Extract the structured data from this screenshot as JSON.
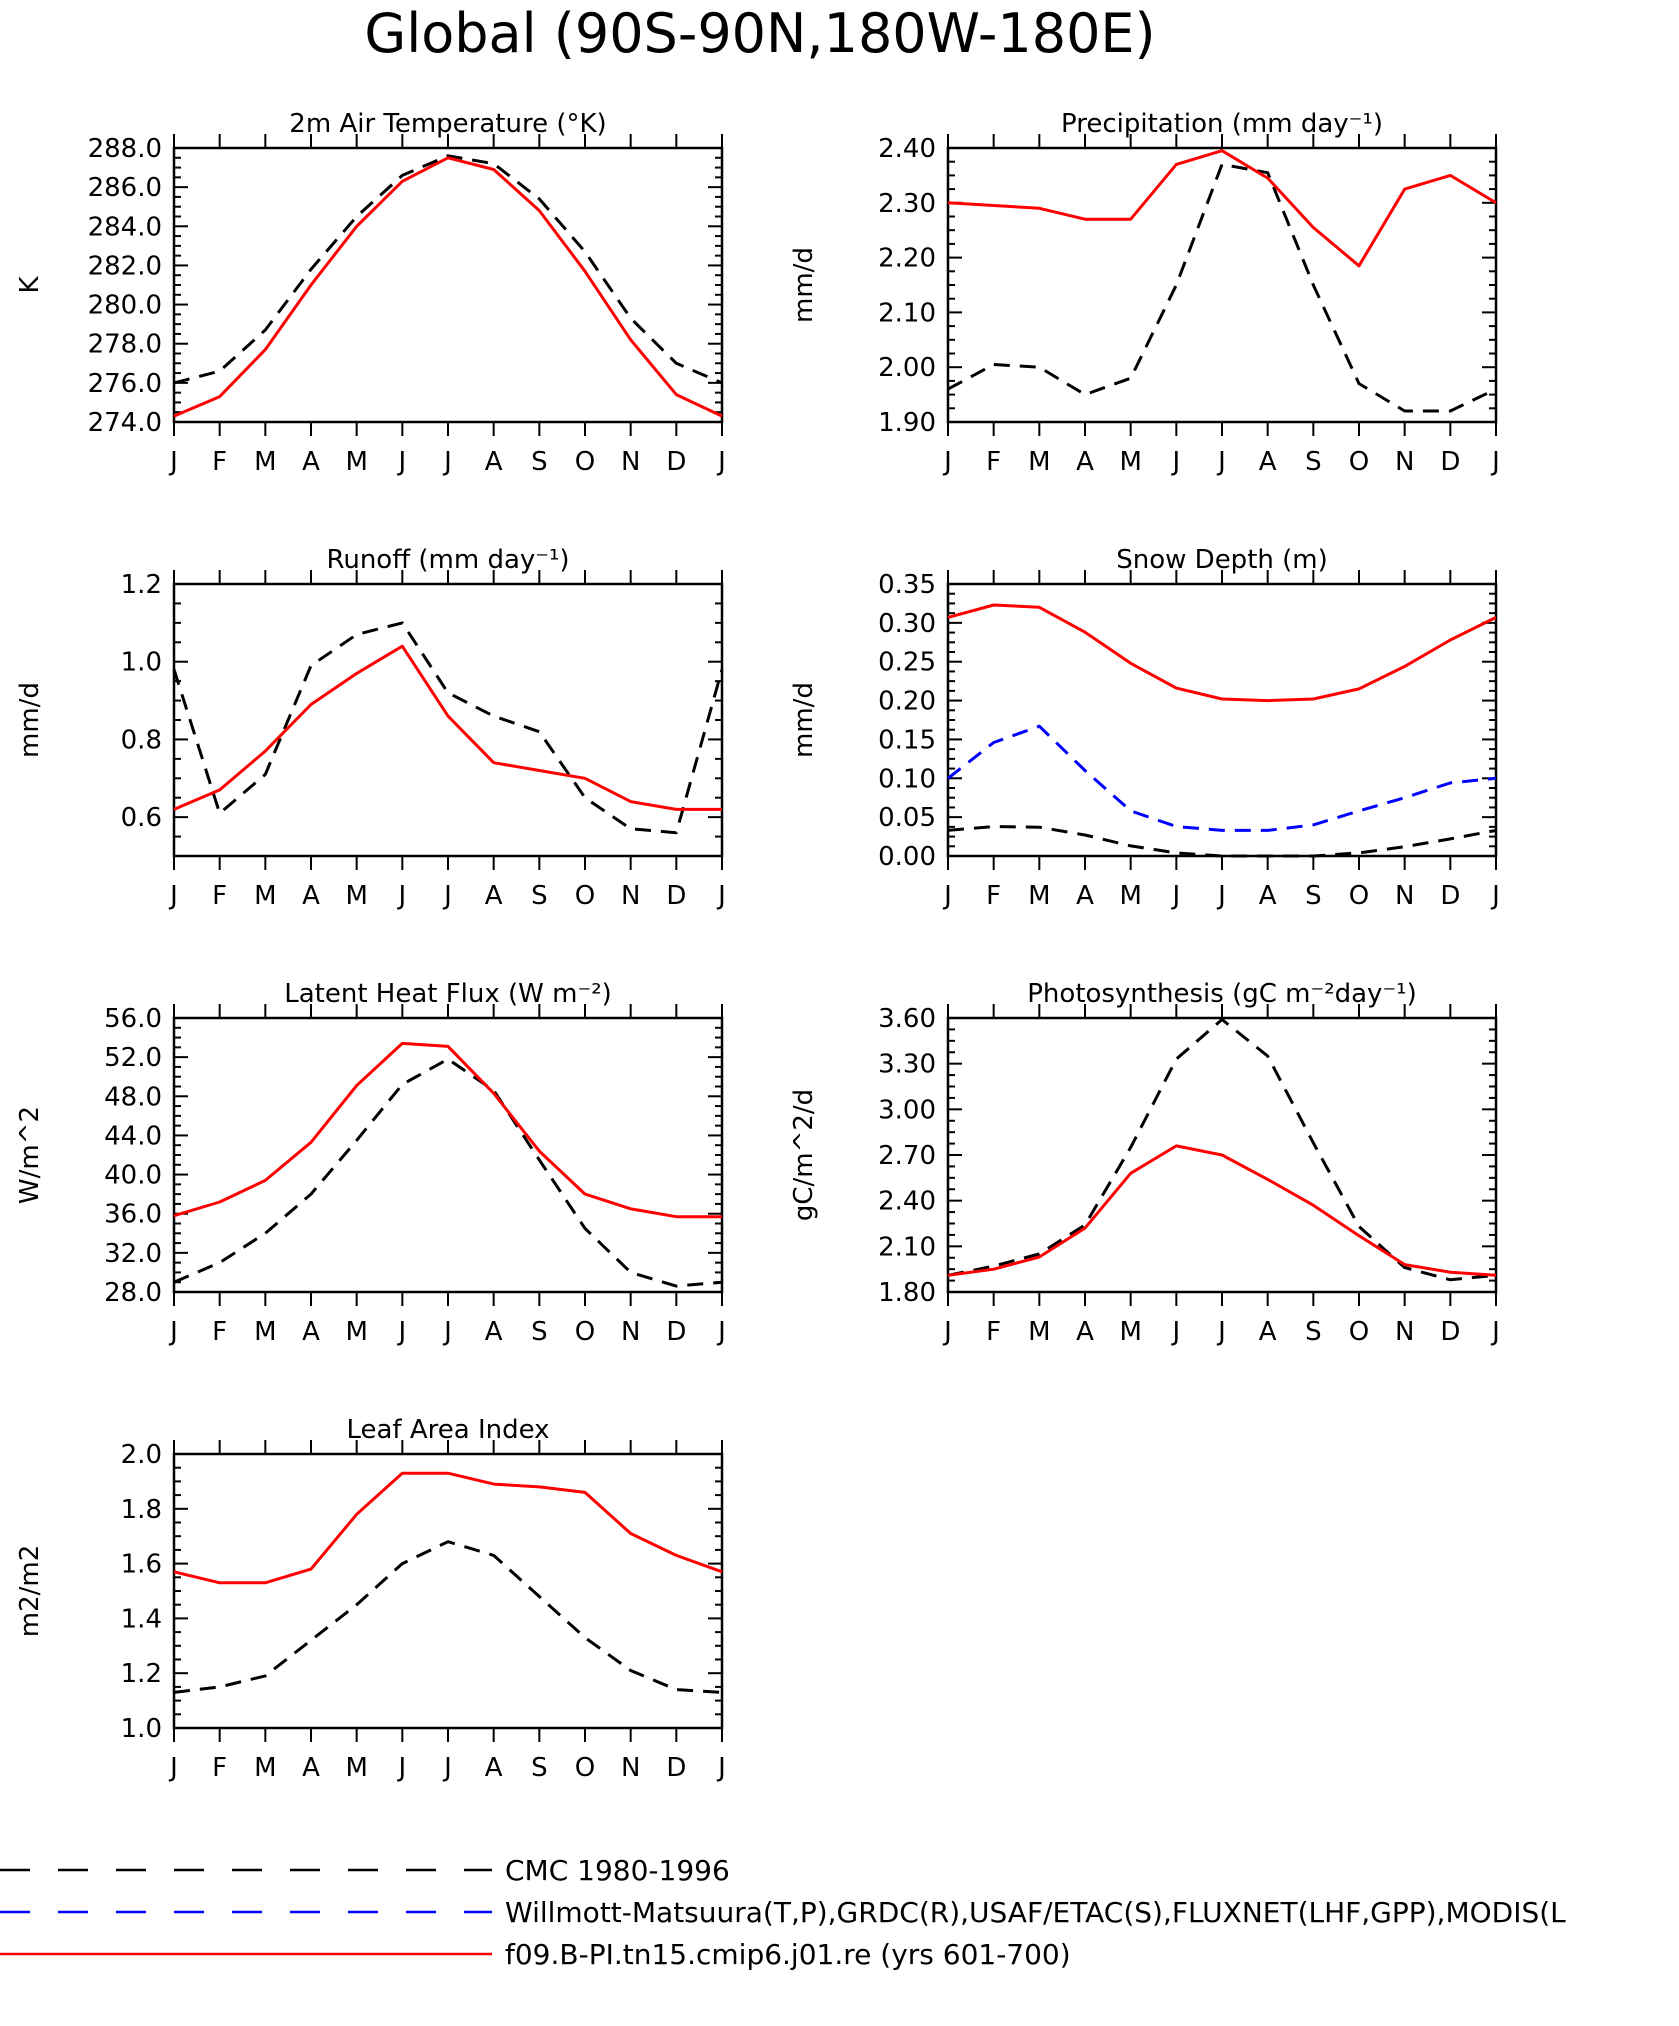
{
  "page_title": "Global (90S-90N,180W-180E)",
  "months": [
    "J",
    "F",
    "M",
    "A",
    "M",
    "J",
    "J",
    "A",
    "S",
    "O",
    "N",
    "D",
    "J"
  ],
  "legend": [
    {
      "label": "CMC 1980-1996",
      "color": "#000000",
      "dash": "dashed-long"
    },
    {
      "label": "Willmott-Matsuura(T,P),GRDC(R),USAF/ETAC(S),FLUXNET(LHF,GPP),MODIS(L",
      "color": "#0000ff",
      "dash": "dashed-long"
    },
    {
      "label": "f09.B-PI.tn15.cmip6.j01.re (yrs 601-700)",
      "color": "#ff0000",
      "dash": "solid"
    }
  ],
  "chart_data": [
    {
      "type": "line",
      "title": "2m Air Temperature (°K)",
      "ylabel": "K",
      "ylim": [
        274.0,
        288.0
      ],
      "yticks": [
        "274.0",
        "276.0",
        "278.0",
        "280.0",
        "282.0",
        "284.0",
        "286.0",
        "288.0"
      ],
      "series": [
        {
          "name": "CMC 1980-1996",
          "color": "#000000",
          "dash": "dashed",
          "values": [
            276.0,
            276.6,
            278.7,
            281.8,
            284.5,
            286.6,
            287.6,
            287.2,
            285.4,
            282.7,
            279.3,
            277.0,
            276.0
          ]
        },
        {
          "name": "f09.B-PI.tn15.cmip6.j01.re (yrs 601-700)",
          "color": "#ff0000",
          "dash": "solid",
          "values": [
            274.3,
            275.3,
            277.7,
            281.0,
            284.0,
            286.3,
            287.5,
            286.9,
            284.8,
            281.7,
            278.2,
            275.4,
            274.3
          ]
        }
      ]
    },
    {
      "type": "line",
      "title": "Precipitation (mm day⁻¹)",
      "ylabel": "mm/d",
      "ylim": [
        1.9,
        2.4
      ],
      "yticks": [
        "1.90",
        "2.00",
        "2.10",
        "2.20",
        "2.30",
        "2.40"
      ],
      "series": [
        {
          "name": "CMC 1980-1996",
          "color": "#000000",
          "dash": "dashed",
          "values": [
            1.96,
            2.005,
            2.0,
            1.95,
            1.98,
            2.15,
            2.37,
            2.355,
            2.15,
            1.97,
            1.92,
            1.92,
            1.96
          ]
        },
        {
          "name": "f09.B-PI.tn15.cmip6.j01.re (yrs 601-700)",
          "color": "#ff0000",
          "dash": "solid",
          "values": [
            2.3,
            2.295,
            2.29,
            2.27,
            2.27,
            2.37,
            2.395,
            2.345,
            2.255,
            2.185,
            2.325,
            2.35,
            2.3
          ]
        }
      ]
    },
    {
      "type": "line",
      "title": "Runoff (mm day⁻¹)",
      "ylabel": "mm/d",
      "ylim": [
        0.5,
        1.2
      ],
      "yticks": [
        "0.6",
        "0.8",
        "1.0",
        "1.2"
      ],
      "series": [
        {
          "name": "CMC 1980-1996",
          "color": "#000000",
          "dash": "dashed",
          "values": [
            0.98,
            0.61,
            0.71,
            0.99,
            1.07,
            1.1,
            0.92,
            0.86,
            0.82,
            0.65,
            0.57,
            0.56,
            0.98
          ]
        },
        {
          "name": "f09.B-PI.tn15.cmip6.j01.re (yrs 601-700)",
          "color": "#ff0000",
          "dash": "solid",
          "values": [
            0.62,
            0.67,
            0.77,
            0.89,
            0.97,
            1.04,
            0.86,
            0.74,
            0.72,
            0.7,
            0.64,
            0.62,
            0.62
          ]
        }
      ]
    },
    {
      "type": "line",
      "title": "Snow Depth (m)",
      "ylabel": "mm/d",
      "ylim": [
        0.0,
        0.35
      ],
      "yticks": [
        "0.00",
        "0.05",
        "0.10",
        "0.15",
        "0.20",
        "0.25",
        "0.30",
        "0.35"
      ],
      "series": [
        {
          "name": "CMC 1980-1996",
          "color": "#000000",
          "dash": "dashed",
          "values": [
            0.033,
            0.038,
            0.037,
            0.027,
            0.013,
            0.004,
            0.0,
            0.0,
            0.0,
            0.004,
            0.012,
            0.022,
            0.033
          ]
        },
        {
          "name": "Willmott-Matsuura(T,P),GRDC(R),USAF/ETAC(S),FLUXNET(LHF,GPP),MODIS(L",
          "color": "#0000ff",
          "dash": "dashed",
          "values": [
            0.1,
            0.146,
            0.167,
            0.11,
            0.058,
            0.038,
            0.033,
            0.033,
            0.04,
            0.058,
            0.075,
            0.094,
            0.1
          ]
        },
        {
          "name": "f09.B-PI.tn15.cmip6.j01.re (yrs 601-700)",
          "color": "#ff0000",
          "dash": "solid",
          "values": [
            0.307,
            0.323,
            0.32,
            0.288,
            0.248,
            0.216,
            0.202,
            0.2,
            0.202,
            0.215,
            0.244,
            0.278,
            0.307
          ]
        }
      ]
    },
    {
      "type": "line",
      "title": "Latent Heat Flux (W m⁻²)",
      "ylabel": "W/m^2",
      "ylim": [
        28.0,
        56.0
      ],
      "yticks": [
        "28.0",
        "32.0",
        "36.0",
        "40.0",
        "44.0",
        "48.0",
        "52.0",
        "56.0"
      ],
      "series": [
        {
          "name": "CMC 1980-1996",
          "color": "#000000",
          "dash": "dashed",
          "values": [
            29.0,
            31.0,
            34.0,
            38.0,
            43.5,
            49.2,
            51.8,
            48.6,
            41.5,
            34.5,
            30.0,
            28.6,
            29.0
          ]
        },
        {
          "name": "f09.B-PI.tn15.cmip6.j01.re (yrs 601-700)",
          "color": "#ff0000",
          "dash": "solid",
          "values": [
            35.8,
            37.2,
            39.4,
            43.3,
            49.1,
            53.4,
            53.1,
            48.3,
            42.4,
            38.0,
            36.5,
            35.7,
            35.7
          ]
        }
      ]
    },
    {
      "type": "line",
      "title": "Photosynthesis (gC m⁻²day⁻¹)",
      "ylabel": "gC/m^2/d",
      "ylim": [
        1.8,
        3.6
      ],
      "yticks": [
        "1.80",
        "2.10",
        "2.40",
        "2.70",
        "3.00",
        "3.30",
        "3.60"
      ],
      "series": [
        {
          "name": "CMC 1980-1996",
          "color": "#000000",
          "dash": "dashed",
          "values": [
            1.91,
            1.97,
            2.05,
            2.24,
            2.75,
            3.33,
            3.59,
            3.35,
            2.78,
            2.23,
            1.96,
            1.88,
            1.91
          ]
        },
        {
          "name": "f09.B-PI.tn15.cmip6.j01.re (yrs 601-700)",
          "color": "#ff0000",
          "dash": "solid",
          "values": [
            1.91,
            1.95,
            2.03,
            2.22,
            2.58,
            2.76,
            2.7,
            2.54,
            2.37,
            2.17,
            1.98,
            1.93,
            1.91
          ]
        }
      ]
    },
    {
      "type": "line",
      "title": "Leaf Area Index",
      "ylabel": "m2/m2",
      "ylim": [
        1.0,
        2.0
      ],
      "yticks": [
        "1.0",
        "1.2",
        "1.4",
        "1.6",
        "1.8",
        "2.0"
      ],
      "series": [
        {
          "name": "CMC 1980-1996",
          "color": "#000000",
          "dash": "dashed",
          "values": [
            1.13,
            1.15,
            1.19,
            1.32,
            1.45,
            1.6,
            1.68,
            1.63,
            1.48,
            1.33,
            1.21,
            1.14,
            1.13
          ]
        },
        {
          "name": "f09.B-PI.tn15.cmip6.j01.re (yrs 601-700)",
          "color": "#ff0000",
          "dash": "solid",
          "values": [
            1.57,
            1.53,
            1.53,
            1.58,
            1.78,
            1.93,
            1.93,
            1.89,
            1.88,
            1.86,
            1.71,
            1.63,
            1.57
          ]
        }
      ]
    }
  ]
}
